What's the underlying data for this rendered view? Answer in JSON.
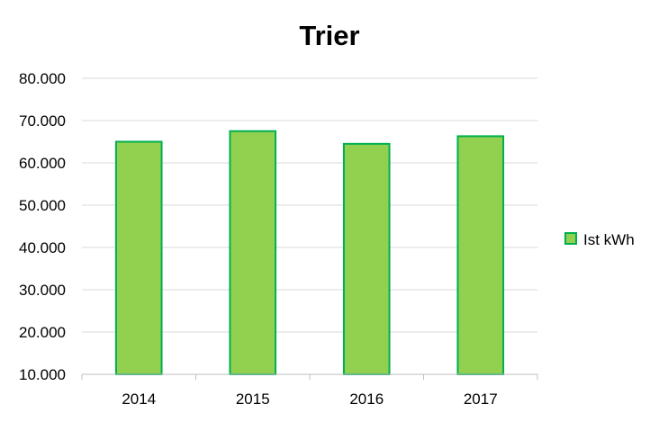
{
  "chart_data": {
    "type": "bar",
    "title": "Trier",
    "categories": [
      "2014",
      "2015",
      "2016",
      "2017"
    ],
    "series": [
      {
        "name": "Ist kWh",
        "values": [
          65000,
          67500,
          64500,
          66300
        ]
      }
    ],
    "ylim": [
      10000,
      80000
    ],
    "y_ticks": [
      10000,
      20000,
      30000,
      40000,
      50000,
      60000,
      70000,
      80000
    ],
    "y_tick_labels": [
      "10.000",
      "20.000",
      "30.000",
      "40.000",
      "50.000",
      "60.000",
      "70.000",
      "80.000"
    ],
    "grid": true,
    "legend_position": "right",
    "colors": {
      "bar_fill": "#92d050",
      "bar_stroke": "#00b050",
      "grid": "#d9d9d9",
      "axis": "#bfbfbf"
    }
  }
}
